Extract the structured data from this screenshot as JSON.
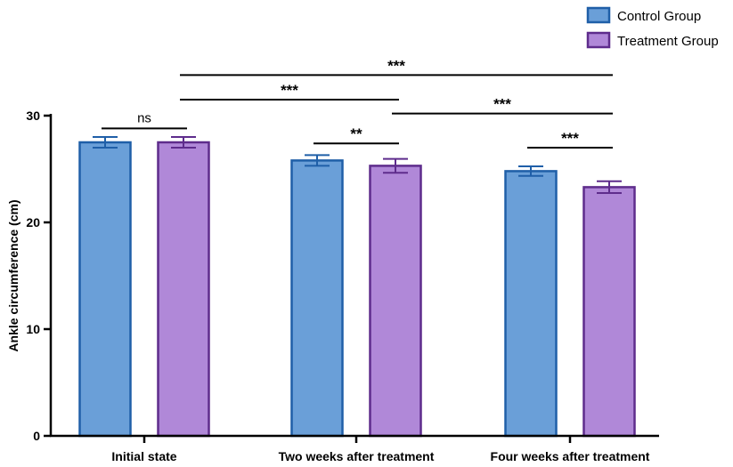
{
  "chart_data": {
    "type": "bar",
    "title": "",
    "xlabel": "",
    "ylabel": "Ankle circumference (cm)",
    "ylim": [
      0,
      30
    ],
    "yticks": [
      0,
      10,
      20,
      30
    ],
    "categories": [
      "Initial state",
      "Two weeks after treatment",
      "Four weeks after treatment"
    ],
    "series": [
      {
        "name": "Control Group",
        "values": [
          27.5,
          25.8,
          24.8
        ],
        "errors": [
          0.5,
          0.5,
          0.45
        ],
        "fill": "#6a9fd8",
        "stroke": "#1f5fa8"
      },
      {
        "name": "Treatment Group",
        "values": [
          27.5,
          25.3,
          23.3
        ],
        "errors": [
          0.5,
          0.65,
          0.55
        ],
        "fill": "#b088d8",
        "stroke": "#5e2c8c"
      }
    ],
    "legend": "top-right",
    "annotations": [
      {
        "label": "ns",
        "from": [
          0,
          0
        ],
        "to": [
          0,
          1
        ],
        "level": 28.8
      },
      {
        "label": "***",
        "from": [
          0,
          1
        ],
        "to": [
          2,
          1
        ],
        "level": 33.8
      },
      {
        "label": "***",
        "from": [
          0,
          1
        ],
        "to": [
          1,
          1
        ],
        "level": 31.5
      },
      {
        "label": "***",
        "from": [
          1,
          1
        ],
        "to": [
          2,
          1
        ],
        "level": 30.2
      },
      {
        "label": "**",
        "from": [
          1,
          0
        ],
        "to": [
          1,
          1
        ],
        "level": 27.4
      },
      {
        "label": "***",
        "from": [
          2,
          0
        ],
        "to": [
          2,
          1
        ],
        "level": 27.0
      }
    ]
  }
}
